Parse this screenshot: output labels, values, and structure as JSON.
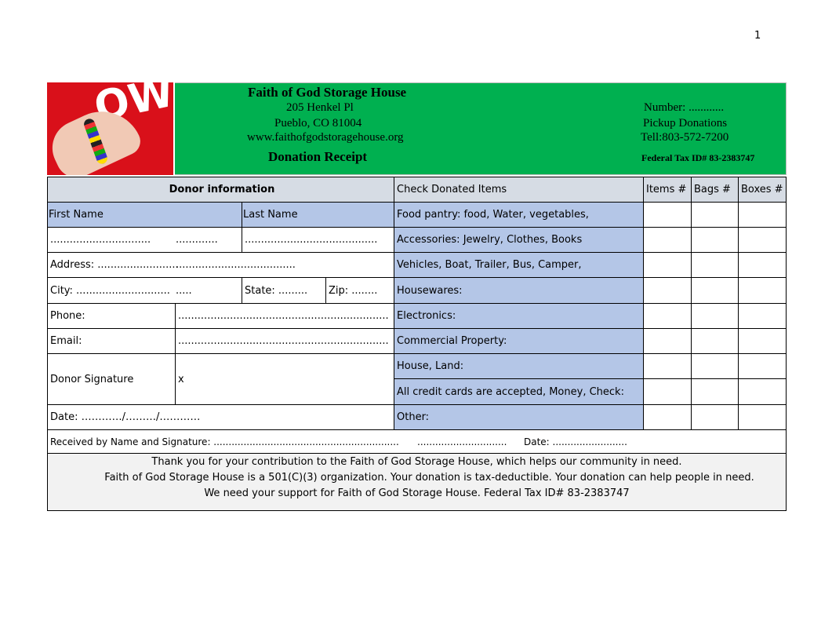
{
  "page_number": "1",
  "header": {
    "org_name": "Faith of God Storage House",
    "street": "205 Henkel Pl",
    "city_state_zip": "Pueblo, CO 81004",
    "website": "www.faithofgodstoragehouse.org",
    "title": "Donation Receipt",
    "number_label": "Number: ............",
    "pickup": "Pickup Donations",
    "phone": "Tell:803-572-7200",
    "tax_id": "Federal Tax ID# 83-2383747",
    "bg_color": "#00b050"
  },
  "donor": {
    "section_title": "Donor information",
    "first_name_label": "First Name",
    "last_name_label": "Last Name",
    "name_dots_1": "...............................",
    "name_dots_2": ".............",
    "name_dots_3": ".........................................",
    "address": "Address: .........................",
    "address_dots": ".....................................",
    "city": "City: .............................",
    "city_dots": ".....",
    "state": "State: .........",
    "zip": "Zip: ........",
    "phone_label": "Phone:",
    "phone_dots": ".................................................................",
    "email_label": "Email:",
    "email_dots": ".................................................................",
    "signature_label": "Donor Signature",
    "signature_value": "x",
    "date": "Date: …………/………/…………"
  },
  "items": {
    "header": "Check Donated Items",
    "columns": [
      "Items #",
      "Bags #",
      "Boxes #"
    ],
    "rows": [
      "Food pantry: food, Water, vegetables,",
      "Accessories: Jewelry, Clothes, Books",
      "Vehicles, Boat, Trailer, Bus, Camper,",
      "Housewares:",
      "Electronics:",
      "Commercial Property:",
      "House, Land:",
      "All credit cards are accepted, Money, Check:",
      "Other:"
    ]
  },
  "received": {
    "label": "Received by Name and Signature: ..............................................................",
    "dots": "..............................",
    "date": "Date:  ........................."
  },
  "footer": {
    "line1": "Thank you for your contribution to the Faith of God Storage House, which helps our community in need.",
    "line2": "Faith of God Storage House is a 501(C)(3) organization. Your donation is tax-deductible. Your donation can help people in need.",
    "line3": "We need your support for Faith of God Storage House. Federal Tax ID# 83-2383747"
  }
}
